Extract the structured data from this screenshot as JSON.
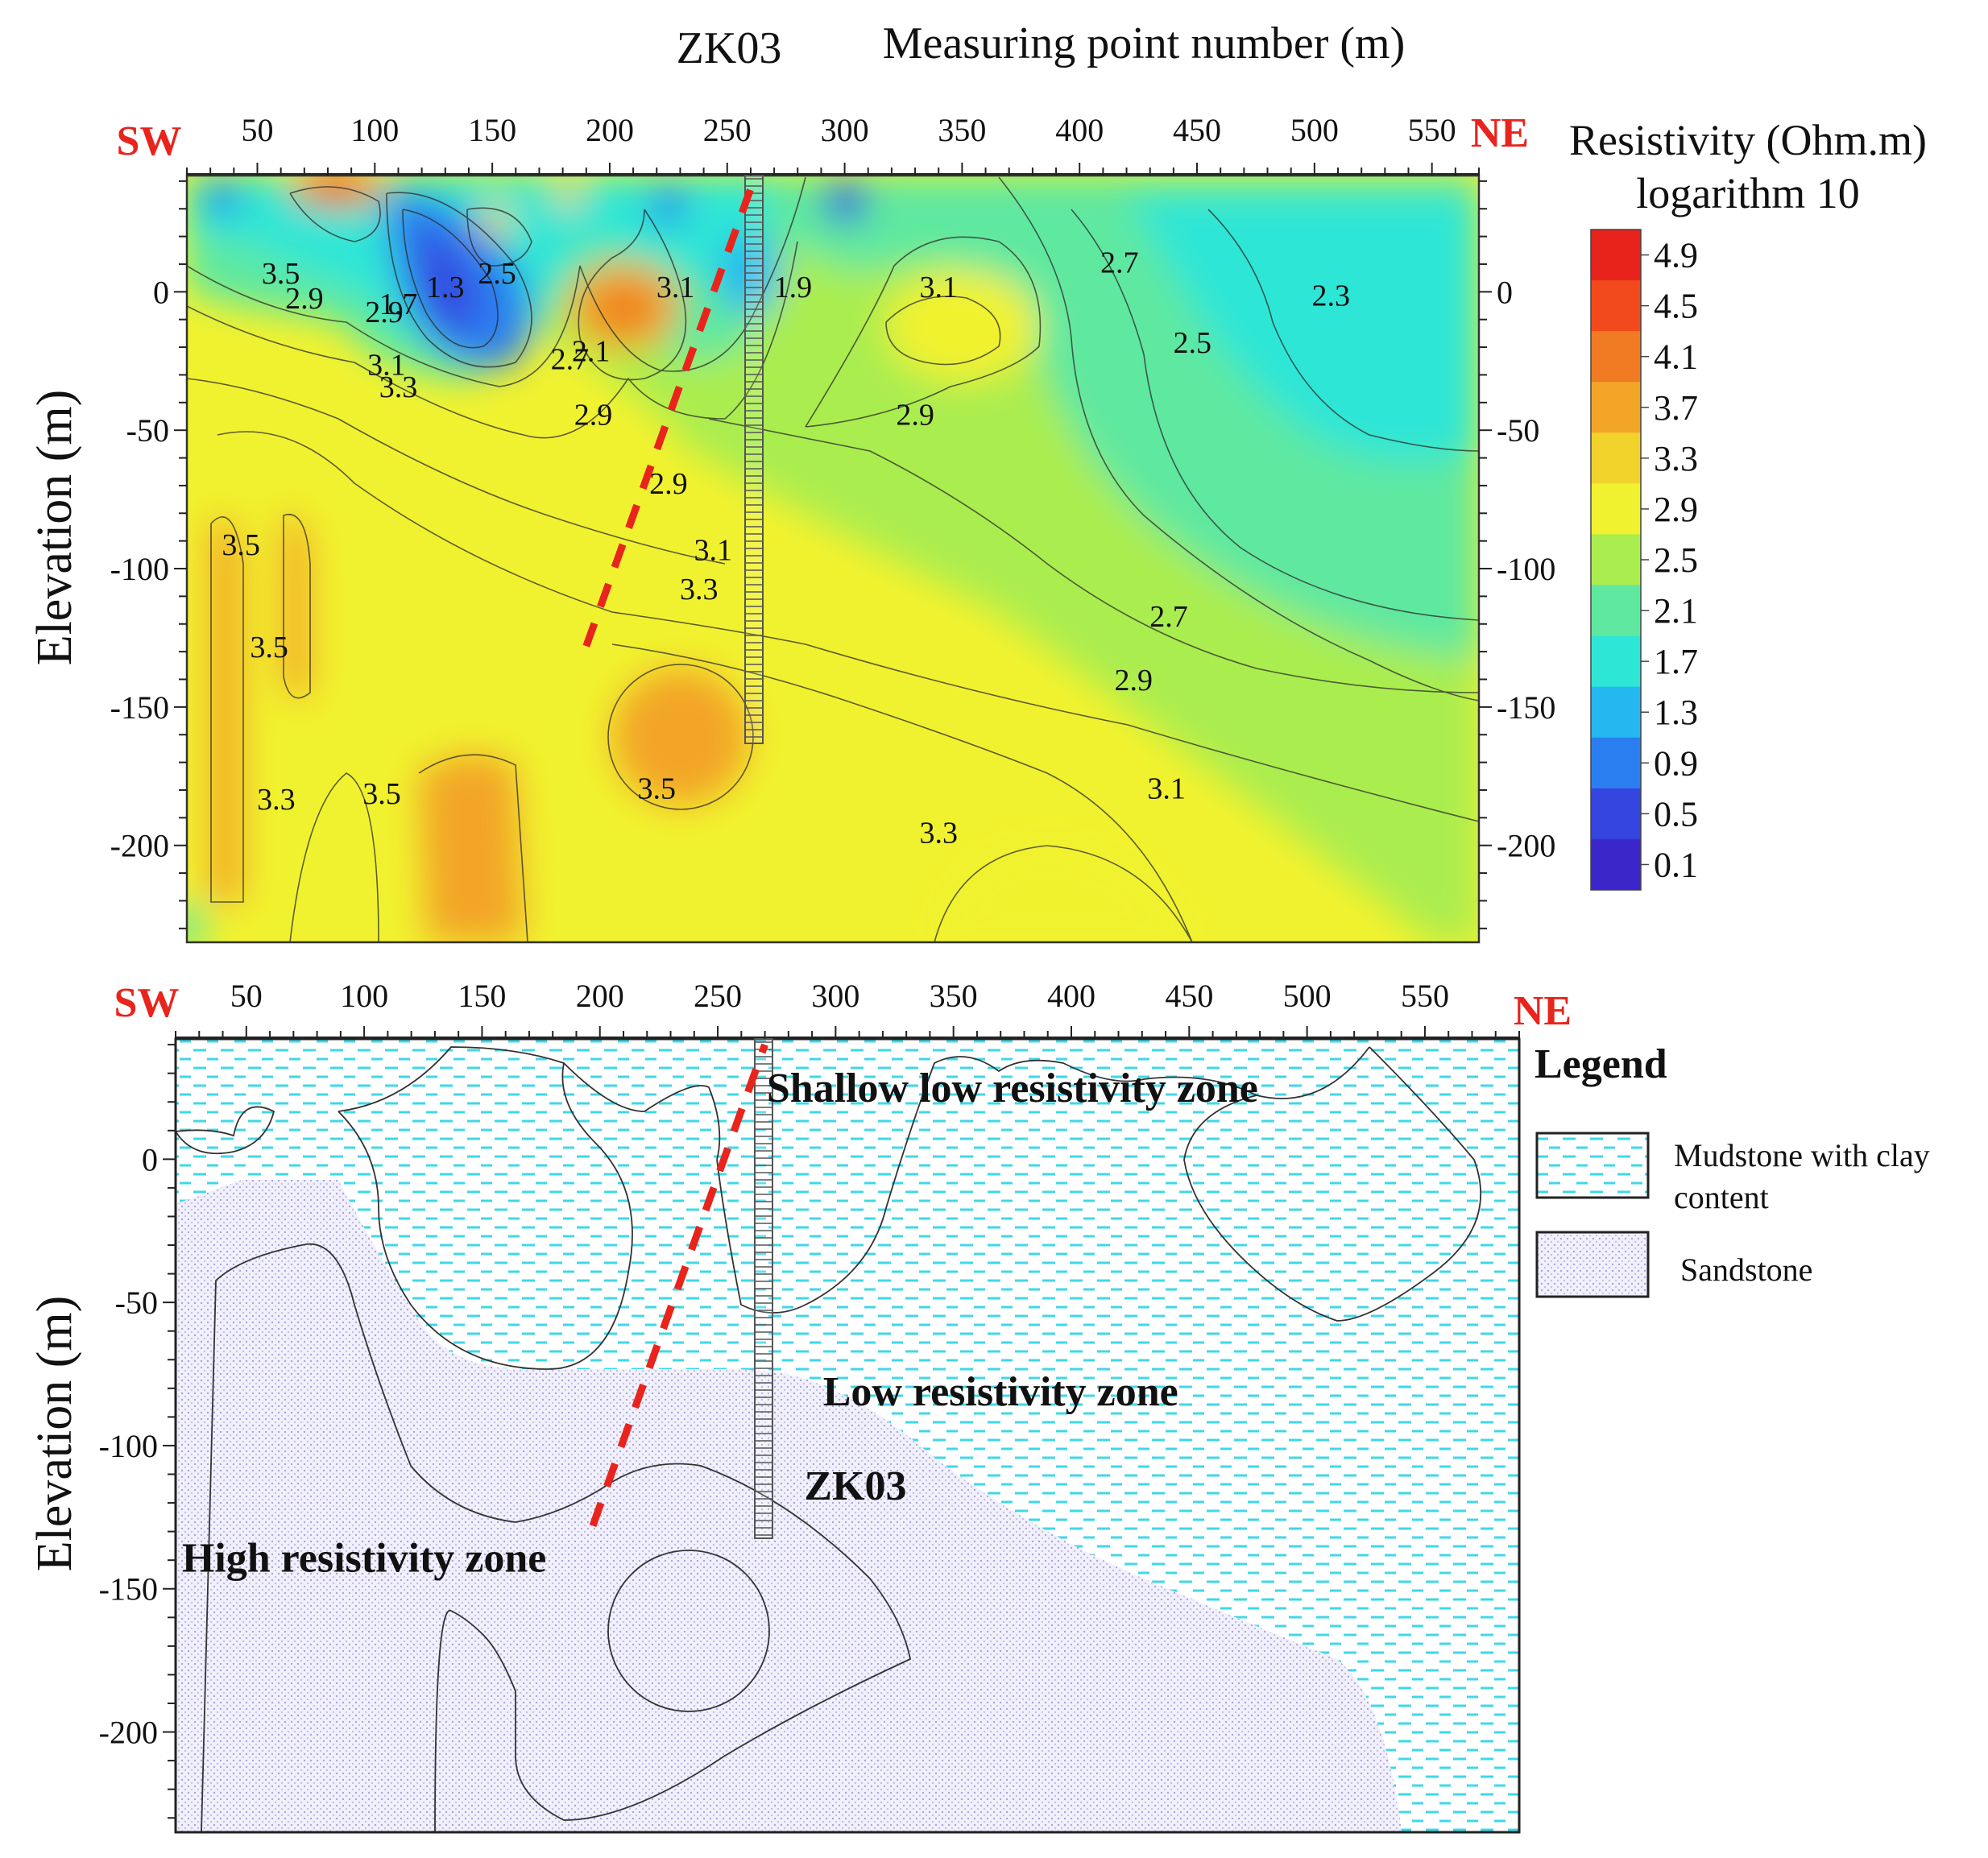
{
  "figure": {
    "top_title": {
      "well": "ZK03",
      "axis": "Measuring point number (m)"
    }
  },
  "chart_data": [
    {
      "type": "heatmap",
      "title": "",
      "xlabel": "Measuring point number (m)",
      "ylabel": "Elevation (m)",
      "xlim": [
        20,
        570
      ],
      "ylim": [
        -235,
        42
      ],
      "x_ticks": [
        50,
        100,
        150,
        200,
        250,
        300,
        350,
        400,
        450,
        500,
        550
      ],
      "y_ticks": [
        0,
        -50,
        -100,
        -150,
        -200
      ],
      "direction_labels": {
        "left": "SW",
        "right": "NE"
      },
      "colorbar": {
        "title": "Resistivity (Ohm.m)",
        "subtitle": "logarithm 10",
        "levels": [
          4.9,
          4.5,
          4.1,
          3.7,
          3.3,
          2.9,
          2.5,
          2.1,
          1.7,
          1.3,
          0.9,
          0.5,
          0.1
        ],
        "colors": [
          "#e8231c",
          "#f24a1c",
          "#f07b22",
          "#f3a528",
          "#f1d32c",
          "#f1f22f",
          "#aaed4f",
          "#5fe8a0",
          "#2ee6d6",
          "#25b8f0",
          "#2b7ef0",
          "#3445e0",
          "#3b26c9"
        ]
      },
      "contour_labels": [
        {
          "text": "3.5",
          "x": 60,
          "y": 3
        },
        {
          "text": "2.9",
          "x": 70,
          "y": -6
        },
        {
          "text": "1.7",
          "x": 110,
          "y": -8
        },
        {
          "text": "2.9",
          "x": 104,
          "y": -11
        },
        {
          "text": "1.3",
          "x": 130,
          "y": -2
        },
        {
          "text": "2.5",
          "x": 152,
          "y": 3
        },
        {
          "text": "3.1",
          "x": 105,
          "y": -30
        },
        {
          "text": "3.3",
          "x": 110,
          "y": -38
        },
        {
          "text": "2.1",
          "x": 192,
          "y": -25
        },
        {
          "text": "2.7",
          "x": 183,
          "y": -28
        },
        {
          "text": "2.9",
          "x": 193,
          "y": -48
        },
        {
          "text": "3.1",
          "x": 228,
          "y": -2
        },
        {
          "text": "1.9",
          "x": 278,
          "y": -2
        },
        {
          "text": "3.1",
          "x": 340,
          "y": -2
        },
        {
          "text": "2.7",
          "x": 417,
          "y": 7
        },
        {
          "text": "2.3",
          "x": 507,
          "y": -5
        },
        {
          "text": "2.5",
          "x": 448,
          "y": -22
        },
        {
          "text": "2.9",
          "x": 330,
          "y": -48
        },
        {
          "text": "2.9",
          "x": 225,
          "y": -73
        },
        {
          "text": "3.1",
          "x": 244,
          "y": -97
        },
        {
          "text": "3.3",
          "x": 238,
          "y": -111
        },
        {
          "text": "3.5",
          "x": 43,
          "y": -95
        },
        {
          "text": "3.5",
          "x": 55,
          "y": -132
        },
        {
          "text": "3.3",
          "x": 58,
          "y": -187
        },
        {
          "text": "3.5",
          "x": 103,
          "y": -185
        },
        {
          "text": "3.5",
          "x": 220,
          "y": -183
        },
        {
          "text": "2.7",
          "x": 438,
          "y": -121
        },
        {
          "text": "2.9",
          "x": 423,
          "y": -144
        },
        {
          "text": "3.1",
          "x": 437,
          "y": -183
        },
        {
          "text": "3.3",
          "x": 340,
          "y": -199
        }
      ],
      "inferred_fault": {
        "color": "#e8241c",
        "from": {
          "x": 190,
          "y": -128
        },
        "to": {
          "x": 262,
          "y": 42
        }
      },
      "borehole": {
        "label": "ZK03",
        "x": 268,
        "y_top": 40,
        "y_bottom": -163
      }
    },
    {
      "type": "area",
      "title": "",
      "xlabel": "",
      "ylabel": "Elevation (m)",
      "xlim": [
        20,
        590
      ],
      "ylim": [
        -235,
        42
      ],
      "x_ticks": [
        50,
        100,
        150,
        200,
        250,
        300,
        350,
        400,
        450,
        500,
        550
      ],
      "y_ticks": [
        0,
        -50,
        -100,
        -150,
        -200
      ],
      "direction_labels": {
        "left": "SW",
        "right": "NE"
      },
      "zones": [
        {
          "label": "Shallow low resistivity zone",
          "x": 375,
          "y": 20
        },
        {
          "label": "Low resistivity zone",
          "x": 370,
          "y": -86
        },
        {
          "label": "High resistivity zone",
          "x": 100,
          "y": -144
        }
      ],
      "borehole": {
        "label": "ZK03",
        "x": 270,
        "y_top": 42,
        "y_bottom": -132
      },
      "inferred_fault": {
        "color": "#e8241c",
        "from": {
          "x": 197,
          "y": -128
        },
        "to": {
          "x": 270,
          "y": 40
        }
      },
      "legend": {
        "title": "Legend",
        "items": [
          {
            "label_line1": "Mudstone with clay",
            "label_line2": "content",
            "pattern": "dashes",
            "color": "#3fd8e6"
          },
          {
            "label_line1": "Sandstone",
            "label_line2": "",
            "pattern": "dots",
            "color": "#b8b8e8"
          }
        ]
      }
    }
  ]
}
